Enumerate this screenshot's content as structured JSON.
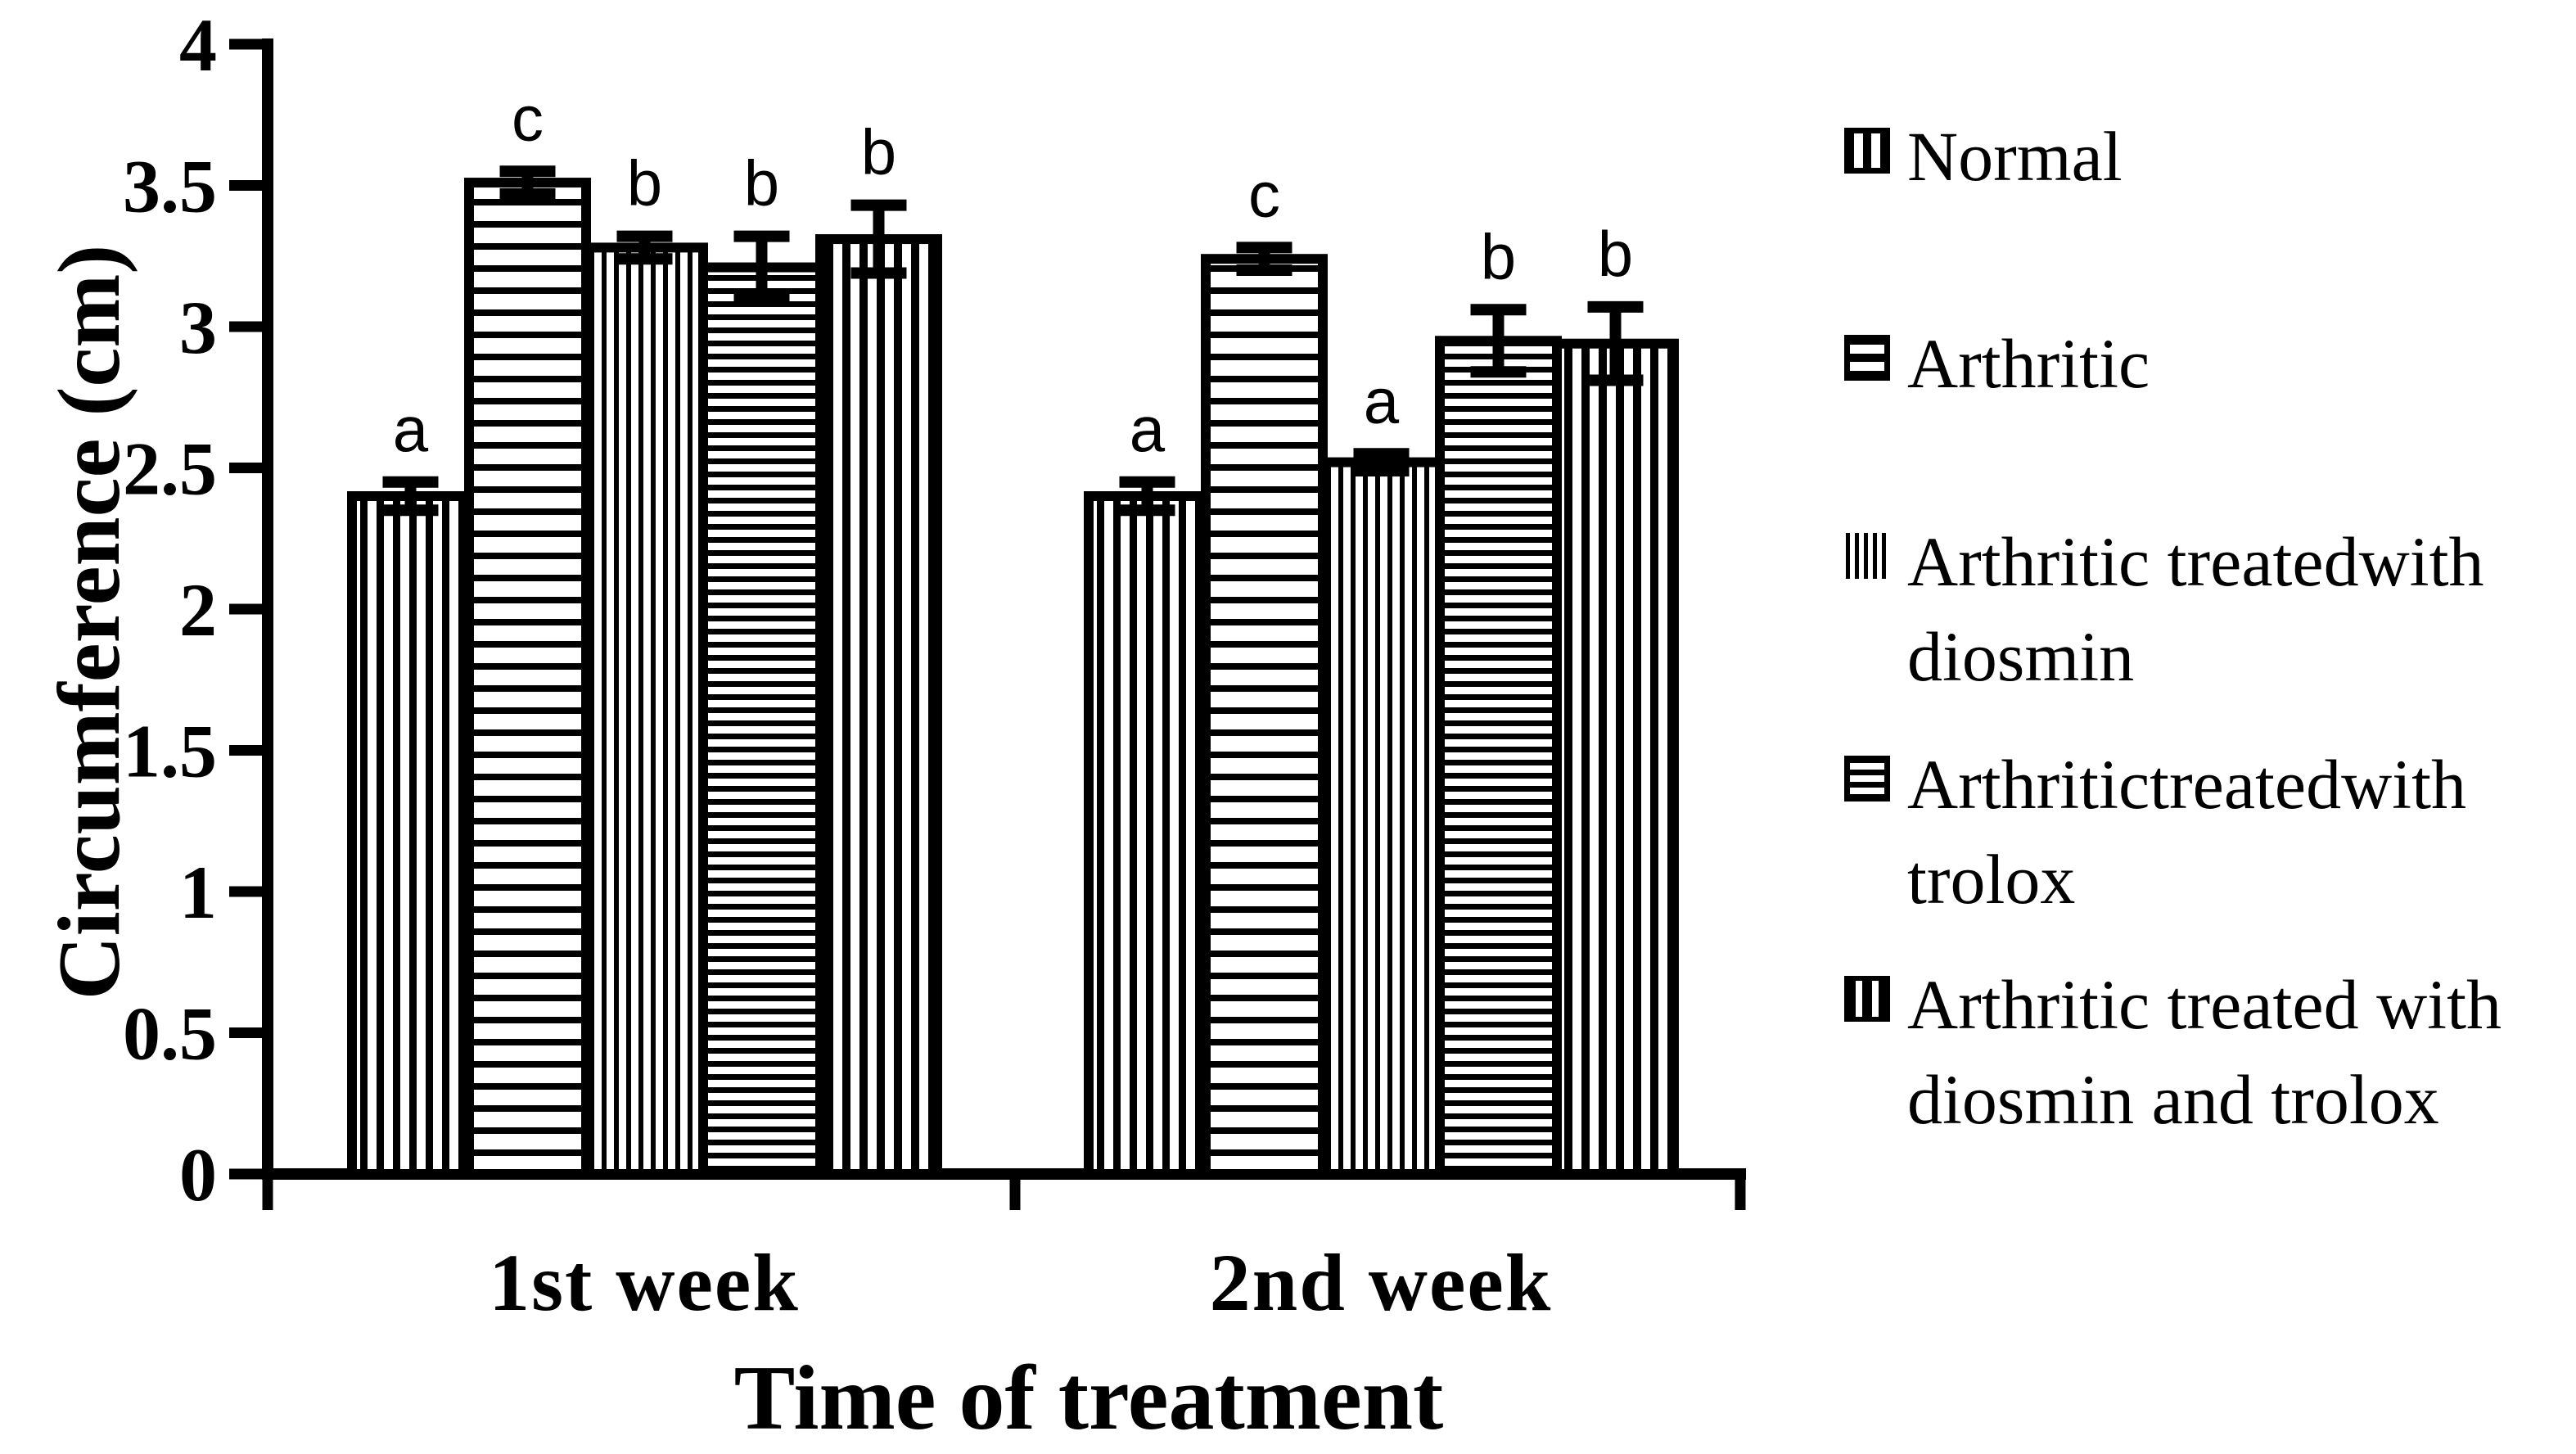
{
  "figure": {
    "background_color": "#ffffff",
    "foreground_color": "#000000"
  },
  "chart_data": {
    "type": "bar",
    "title": "",
    "xlabel": "Time of treatment",
    "ylabel": "Circumference (cm)",
    "ylim": [
      0,
      4
    ],
    "ytick_step": 0.5,
    "yticks": [
      "0",
      "0.5",
      "1",
      "1.5",
      "2",
      "2.5",
      "3",
      "3.5",
      "4"
    ],
    "grid": "off",
    "legend_position": "right",
    "categories": [
      "1st week",
      "2nd week"
    ],
    "series": [
      {
        "name": "Normal",
        "legend_lines": [
          "Normal"
        ],
        "pattern": "vertical-stripes-wide",
        "marker": "square-two-vertical-slots",
        "values": [
          2.4,
          2.4
        ],
        "errors": [
          0.05,
          0.05
        ],
        "letters": [
          "a",
          "a"
        ]
      },
      {
        "name": "Arthritic",
        "legend_lines": [
          "Arthritic"
        ],
        "pattern": "horizontal-stripes-wide",
        "marker": "square-two-horizontal-slots",
        "values": [
          3.51,
          3.24
        ],
        "errors": [
          0.04,
          0.04
        ],
        "letters": [
          "c",
          "c"
        ]
      },
      {
        "name": "Arthritic treatedwith diosmin",
        "legend_lines": [
          "Arthritic treatedwith",
          "diosmin"
        ],
        "pattern": "vertical-stripes-thin",
        "marker": "thin-vertical-lines",
        "values": [
          3.28,
          2.52
        ],
        "errors": [
          0.04,
          0.03
        ],
        "letters": [
          "b",
          "a"
        ]
      },
      {
        "name": "Arthritictreatedwith trolox",
        "legend_lines": [
          "Arthritictreatedwith",
          "trolox"
        ],
        "pattern": "horizontal-stripes-thin",
        "marker": "square-three-horizontal-slots",
        "values": [
          3.21,
          2.95
        ],
        "errors": [
          0.11,
          0.11
        ],
        "letters": [
          "b",
          "b"
        ]
      },
      {
        "name": "Arthritic treated with diosmin and trolox",
        "legend_lines": [
          "Arthritic treated with",
          "diosmin and trolox"
        ],
        "pattern": "vertical-stripes-medium",
        "marker": "square-two-thin-vertical-slots",
        "values": [
          3.31,
          2.94
        ],
        "errors": [
          0.12,
          0.13
        ],
        "letters": [
          "b",
          "b"
        ]
      }
    ]
  }
}
